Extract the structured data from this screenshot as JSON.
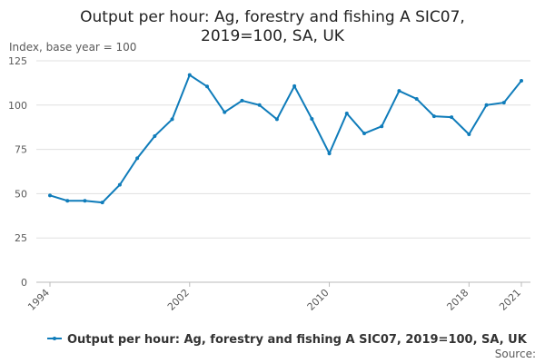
{
  "chart_data": {
    "type": "line",
    "title": [
      "Output per hour: Ag, forestry and fishing A SIC07,",
      "2019=100, SA, UK"
    ],
    "y_label": "Index, base year = 100",
    "x": [
      1994,
      1995,
      1996,
      1997,
      1998,
      1999,
      2000,
      2001,
      2002,
      2003,
      2004,
      2005,
      2006,
      2007,
      2008,
      2009,
      2010,
      2011,
      2012,
      2013,
      2014,
      2015,
      2016,
      2017,
      2018,
      2019,
      2020,
      2021
    ],
    "series": [
      {
        "name": "Output per hour: Ag, forestry and fishing A SIC07, 2019=100, SA, UK",
        "color": "#0f7cba",
        "values": [
          49,
          46,
          46,
          45,
          55,
          70,
          82.5,
          92,
          117,
          110.5,
          96,
          102.5,
          100,
          92,
          110.7,
          92.2,
          72.7,
          95.3,
          84,
          88,
          108,
          103.5,
          93.7,
          93.2,
          83.5,
          100,
          101.4,
          113.7
        ]
      }
    ],
    "xlim": [
      1994,
      2021
    ],
    "xticks": [
      1994,
      2002,
      2010,
      2018,
      2021
    ],
    "ylim": [
      0,
      125
    ],
    "yticks": [
      0,
      25,
      50,
      75,
      100,
      125
    ],
    "grid": true,
    "legend": "bottom",
    "source": "Source:"
  }
}
